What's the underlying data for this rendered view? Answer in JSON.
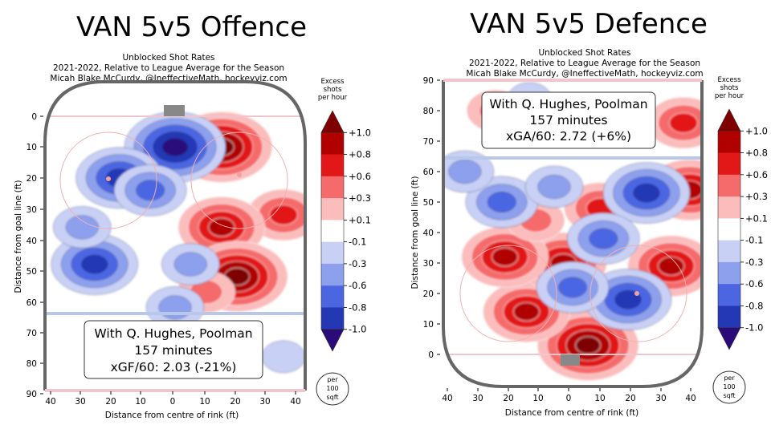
{
  "chart_data": [
    {
      "type": "heatmap",
      "title": "VAN 5v5 Offence",
      "subtitle": [
        "Unblocked Shot Rates",
        "2021-2022, Relative to League Average for the Season",
        "Micah Blake McCurdy, @IneffectiveMath, hockeyviz.com"
      ],
      "xlabel": "Distance from centre of rink (ft)",
      "ylabel": "Distance from goal line (ft)",
      "x_ticks": [
        "40",
        "30",
        "20",
        "10",
        "0",
        "10",
        "20",
        "30",
        "40"
      ],
      "y_ticks": [
        "0",
        "10",
        "20",
        "30",
        "40",
        "50",
        "60",
        "70",
        "80",
        "90"
      ],
      "xlim": [
        -42,
        42
      ],
      "ylim": [
        90,
        -10
      ],
      "y_axis_direction": "down",
      "annotation": {
        "line1": "With Q. Hughes, Poolman",
        "line2": "157 minutes",
        "line3": "xGF/60: 2.03 (-21%)"
      },
      "colorbar": {
        "title": [
          "Excess",
          "shots",
          "per hour"
        ],
        "levels": [
          "+1.0",
          "+0.8",
          "+0.6",
          "+0.3",
          "+0.1",
          "-0.1",
          "-0.3",
          "-0.6",
          "-0.8",
          "-1.0"
        ],
        "unit_label": [
          "per",
          "100",
          "sqft"
        ]
      },
      "hotspots": [
        {
          "x": 15,
          "y": 10,
          "value": 1.0
        },
        {
          "x": 35,
          "y": 32,
          "value": 0.6
        },
        {
          "x": 15,
          "y": 36,
          "value": 0.8
        },
        {
          "x": 20,
          "y": 52,
          "value": 1.0
        },
        {
          "x": 10,
          "y": 57,
          "value": 0.3
        },
        {
          "x": 0,
          "y": 10,
          "value": -1.0
        },
        {
          "x": -18,
          "y": 20,
          "value": -0.8
        },
        {
          "x": -8,
          "y": 24,
          "value": -0.6
        },
        {
          "x": -26,
          "y": 48,
          "value": -0.8
        },
        {
          "x": -30,
          "y": 36,
          "value": -0.3
        },
        {
          "x": 5,
          "y": 48,
          "value": -0.3
        },
        {
          "x": 0,
          "y": 62,
          "value": -0.3
        },
        {
          "x": 35,
          "y": 78,
          "value": -0.1
        }
      ]
    },
    {
      "type": "heatmap",
      "title": "VAN 5v5 Defence",
      "subtitle": [
        "Unblocked Shot Rates",
        "2021-2022, Relative to League Average for the Season",
        "Micah Blake McCurdy, @IneffectiveMath, hockeyviz.com"
      ],
      "xlabel": "Distance from centre of rink (ft)",
      "ylabel": "Distance from goal line (ft)",
      "x_ticks": [
        "40",
        "30",
        "20",
        "10",
        "0",
        "10",
        "20",
        "30",
        "40"
      ],
      "y_ticks": [
        "0",
        "10",
        "20",
        "30",
        "40",
        "50",
        "60",
        "70",
        "80",
        "90"
      ],
      "xlim": [
        -42,
        42
      ],
      "ylim": [
        -10,
        90
      ],
      "y_axis_direction": "up",
      "annotation": {
        "line1": "With Q. Hughes, Poolman",
        "line2": "157 minutes",
        "line3": "xGA/60: 2.72 (+6%)"
      },
      "colorbar": {
        "title": [
          "Excess",
          "shots",
          "per hour"
        ],
        "levels": [
          "+1.0",
          "+0.8",
          "+0.6",
          "+0.3",
          "+0.1",
          "-0.1",
          "-0.3",
          "-0.6",
          "-0.8",
          "-1.0"
        ],
        "unit_label": [
          "per",
          "100",
          "sqft"
        ]
      },
      "hotspots": [
        {
          "x": 5,
          "y": 3,
          "value": 1.0
        },
        {
          "x": -15,
          "y": 14,
          "value": 0.8
        },
        {
          "x": -3,
          "y": 30,
          "value": 0.8
        },
        {
          "x": -22,
          "y": 32,
          "value": 0.8
        },
        {
          "x": 32,
          "y": 29,
          "value": 0.8
        },
        {
          "x": 38,
          "y": 54,
          "value": 0.8
        },
        {
          "x": 36,
          "y": 76,
          "value": 0.6
        },
        {
          "x": 9,
          "y": 48,
          "value": 0.6
        },
        {
          "x": -25,
          "y": 80,
          "value": 0.3
        },
        {
          "x": -12,
          "y": 44,
          "value": 0.3
        },
        {
          "x": 24,
          "y": 53,
          "value": -0.8
        },
        {
          "x": 18,
          "y": 18,
          "value": -0.8
        },
        {
          "x": 10,
          "y": 38,
          "value": -0.6
        },
        {
          "x": -23,
          "y": 50,
          "value": -0.6
        },
        {
          "x": 0,
          "y": 22,
          "value": -0.6
        },
        {
          "x": -6,
          "y": 55,
          "value": -0.3
        },
        {
          "x": -35,
          "y": 60,
          "value": -0.3
        },
        {
          "x": -14,
          "y": 84,
          "value": -0.1
        }
      ]
    }
  ],
  "colors": {
    "pos5": "#7f0000",
    "pos4": "#b10000",
    "pos3": "#e21818",
    "pos2": "#f56a6a",
    "pos1": "#fbbcbc",
    "neutral": "#ffffff",
    "neg1": "#c8d0f5",
    "neg2": "#8da0ee",
    "neg3": "#4c66e2",
    "neg4": "#2437b5",
    "neg5": "#2b0b7a",
    "board": "#666666",
    "goal_line": "#f2c4cc",
    "blue_line": "#b8c8e8",
    "net": "#888888"
  }
}
